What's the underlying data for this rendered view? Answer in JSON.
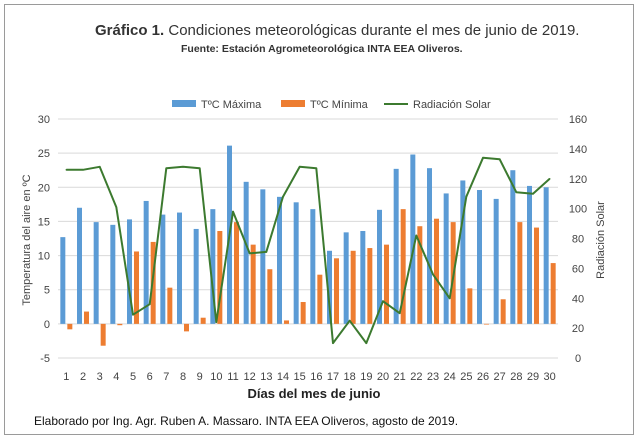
{
  "chart_data": {
    "type": "bar",
    "title_bold": "Gráfico 1.",
    "title_rest": " Condiciones meteorológicas durante el mes de junio de 2019.",
    "subtitle": "Fuente: Estación Agrometeorológica INTA EEA Oliveros.",
    "xlabel": "Días del mes de junio",
    "ylabel_left": "Temperatura del aire en ºC",
    "ylabel_right": "Radiación Solar",
    "ylim_left": [
      -5,
      30
    ],
    "ylim_right": [
      0,
      160
    ],
    "yticks_left": [
      "-5",
      "0",
      "5",
      "10",
      "15",
      "20",
      "25",
      "30"
    ],
    "yticks_right": [
      "0",
      "20",
      "40",
      "60",
      "80",
      "100",
      "120",
      "140",
      "160"
    ],
    "categories": [
      "1",
      "2",
      "3",
      "4",
      "5",
      "6",
      "7",
      "8",
      "9",
      "10",
      "11",
      "12",
      "13",
      "14",
      "15",
      "16",
      "17",
      "18",
      "19",
      "20",
      "21",
      "22",
      "23",
      "24",
      "25",
      "26",
      "27",
      "28",
      "29",
      "30"
    ],
    "series": [
      {
        "name": "TºC Máxima",
        "kind": "bar",
        "axis": "left",
        "color": "#5b9bd5",
        "values": [
          12.7,
          17.0,
          14.9,
          14.5,
          15.3,
          18.0,
          16.0,
          16.3,
          13.9,
          16.8,
          26.1,
          20.8,
          19.7,
          18.6,
          17.8,
          16.8,
          10.7,
          13.4,
          13.6,
          16.7,
          22.7,
          24.8,
          22.8,
          19.1,
          21.0,
          19.6,
          18.3,
          22.5,
          20.2,
          20.0
        ]
      },
      {
        "name": "TºC Mínima",
        "kind": "bar",
        "axis": "left",
        "color": "#ed7d31",
        "values": [
          -0.8,
          1.8,
          -3.2,
          -0.2,
          10.6,
          12.0,
          5.3,
          -1.1,
          0.9,
          13.6,
          14.9,
          11.6,
          8.0,
          0.5,
          3.2,
          7.2,
          9.6,
          10.7,
          11.1,
          11.6,
          16.8,
          14.3,
          15.4,
          14.9,
          5.2,
          -0.1,
          3.6,
          14.9,
          14.1,
          8.9
        ]
      },
      {
        "name": "Radiación Solar",
        "kind": "line",
        "axis": "right",
        "color": "#3c7a2f",
        "values": [
          126,
          126,
          128,
          101,
          29,
          36,
          127,
          128,
          127,
          24,
          98,
          70,
          71,
          108,
          128,
          127,
          10,
          25,
          10,
          38,
          30,
          82,
          56,
          40,
          108,
          134,
          133,
          111,
          110,
          120
        ]
      }
    ],
    "legend": [
      "TºC Máxima",
      "TºC Mínima",
      "Radiación Solar"
    ],
    "legend_position": "top"
  },
  "footer": "Elaborado por Ing. Agr. Ruben A. Massaro. INTA EEA Oliveros, agosto de 2019."
}
